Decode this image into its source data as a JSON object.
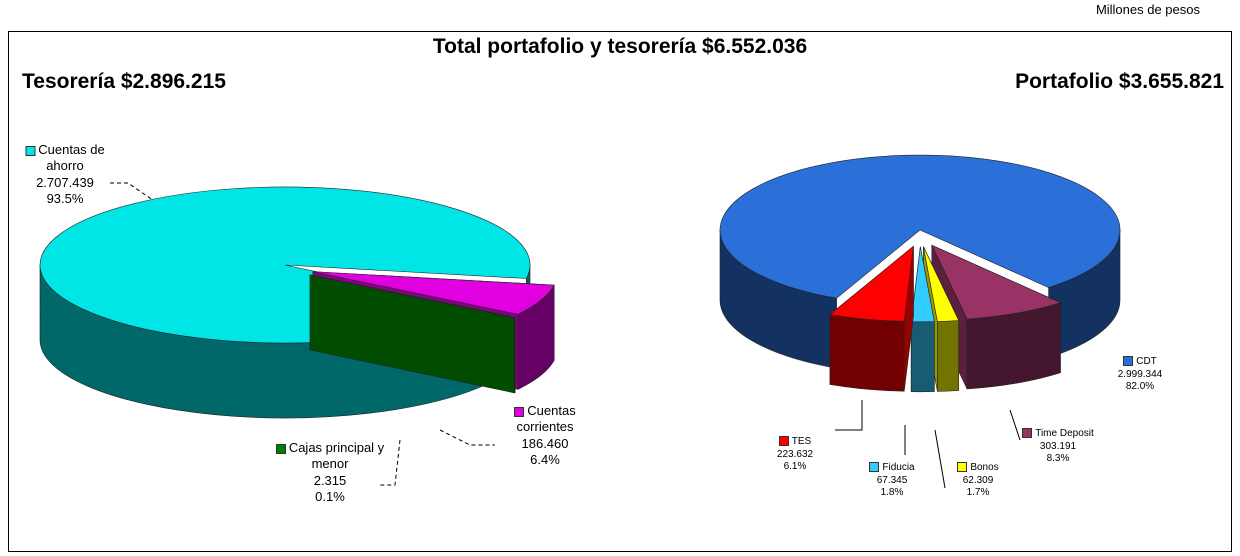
{
  "header": {
    "units": "Millones de pesos",
    "title": "Total portafolio y tesorería $6.552.036"
  },
  "chart_data": [
    {
      "type": "pie",
      "title": "Tesorería $2.896.215",
      "categories": [
        "Cuentas corrientes",
        "Cajas principal y menor",
        "Cuentas de ahorro"
      ],
      "values": [
        186460,
        2315,
        2707439
      ],
      "value_labels": [
        "186.460",
        "2.315",
        "2.707.439"
      ],
      "percents": [
        6.4,
        0.1,
        93.5
      ],
      "percent_labels": [
        "6.4%",
        "0.1%",
        "93.5%"
      ],
      "colors": [
        "#e000e0",
        "#008000",
        "#00e6e6"
      ]
    },
    {
      "type": "pie",
      "title": "Portafolio $3.655.821",
      "categories": [
        "Time Deposit",
        "Bonos",
        "Fiducia",
        "TES",
        "CDT"
      ],
      "values": [
        303191,
        62309,
        67345,
        223632,
        2999344
      ],
      "value_labels": [
        "303.191",
        "62.309",
        "67.345",
        "223.632",
        "2.999.344"
      ],
      "percents": [
        8.3,
        1.7,
        1.8,
        6.1,
        82.0
      ],
      "percent_labels": [
        "8.3%",
        "1.7%",
        "1.8%",
        "6.1%",
        "82.0%"
      ],
      "colors": [
        "#993366",
        "#ffff00",
        "#33ccff",
        "#ff0000",
        "#2b6fd9"
      ]
    }
  ]
}
